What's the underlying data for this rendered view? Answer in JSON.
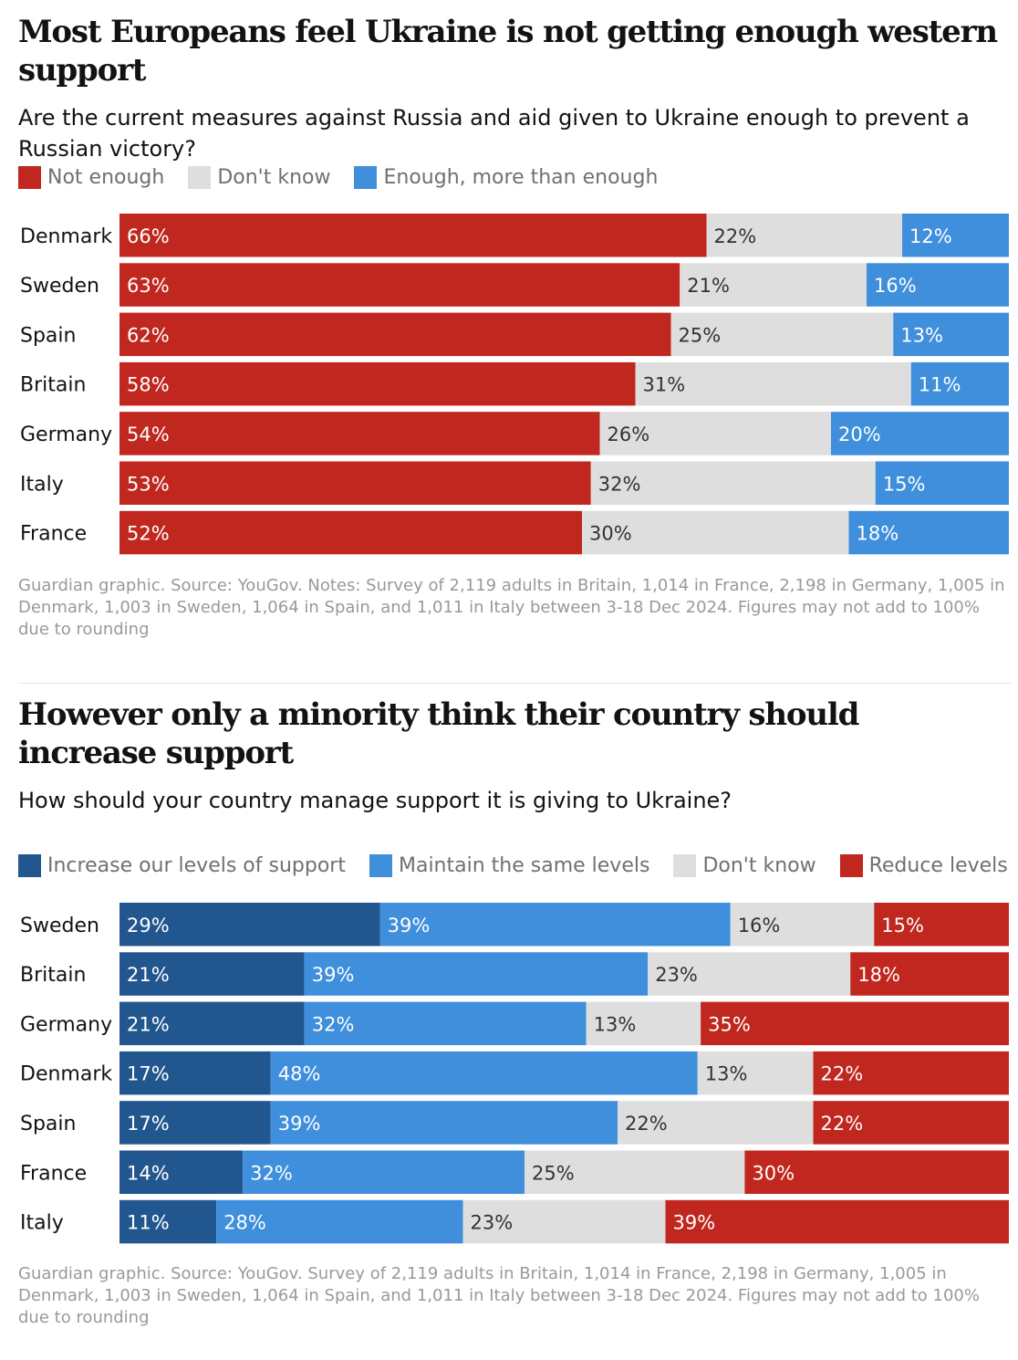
{
  "chart_data": [
    {
      "type": "bar",
      "orientation": "horizontal",
      "stacked": true,
      "title": "Most Europeans feel Ukraine is not getting enough western support",
      "subtitle": "Are the current measures against Russia and aid given to Ukraine enough to prevent a Russian victory?",
      "categories": [
        "Denmark",
        "Sweden",
        "Spain",
        "Britain",
        "Germany",
        "Italy",
        "France"
      ],
      "series": [
        {
          "name": "Not enough",
          "color": "#c0271f",
          "text_color": "#ffffff",
          "values": [
            66,
            63,
            62,
            58,
            54,
            53,
            52
          ]
        },
        {
          "name": "Don't know",
          "color": "#dedede",
          "text_color": "#333333",
          "values": [
            22,
            21,
            25,
            31,
            26,
            32,
            30
          ]
        },
        {
          "name": "Enough, more than enough",
          "color": "#3f8fdc",
          "text_color": "#ffffff",
          "values": [
            12,
            16,
            13,
            11,
            20,
            15,
            18
          ]
        }
      ],
      "value_suffix": "%",
      "legend_position": "top-left",
      "source": "Guardian graphic. Source: YouGov. Notes: Survey of 2,119 adults in Britain, 1,014 in France, 2,198 in Germany, 1,005 in Denmark, 1,003 in Sweden, 1,064 in Spain, and 1,011 in Italy between 3-18 Dec 2024. Figures may not add to 100% due to rounding"
    },
    {
      "type": "bar",
      "orientation": "horizontal",
      "stacked": true,
      "title": "However only a minority think their country should increase support",
      "subtitle": "How should your country manage support it is giving to Ukraine?",
      "categories": [
        "Sweden",
        "Britain",
        "Germany",
        "Denmark",
        "Spain",
        "France",
        "Italy"
      ],
      "series": [
        {
          "name": "Increase our levels of support",
          "color": "#22568f",
          "text_color": "#ffffff",
          "values": [
            29,
            21,
            21,
            17,
            17,
            14,
            11
          ]
        },
        {
          "name": "Maintain the same levels",
          "color": "#3f8fdc",
          "text_color": "#ffffff",
          "values": [
            39,
            39,
            32,
            48,
            39,
            32,
            28
          ]
        },
        {
          "name": "Don't know",
          "color": "#dedede",
          "text_color": "#333333",
          "values": [
            16,
            23,
            13,
            13,
            22,
            25,
            23
          ]
        },
        {
          "name": "Reduce levels",
          "color": "#c0271f",
          "text_color": "#ffffff",
          "values": [
            15,
            18,
            35,
            22,
            22,
            30,
            39
          ]
        }
      ],
      "value_suffix": "%",
      "legend_position": "top-left",
      "source": "Guardian graphic. Source: YouGov. Survey of 2,119 adults in Britain, 1,014 in France, 2,198 in Germany, 1,005 in Denmark, 1,003 in Sweden, 1,064 in Spain, and 1,011 in Italy between 3-18 Dec 2024. Figures may not add to 100% due to rounding"
    }
  ]
}
